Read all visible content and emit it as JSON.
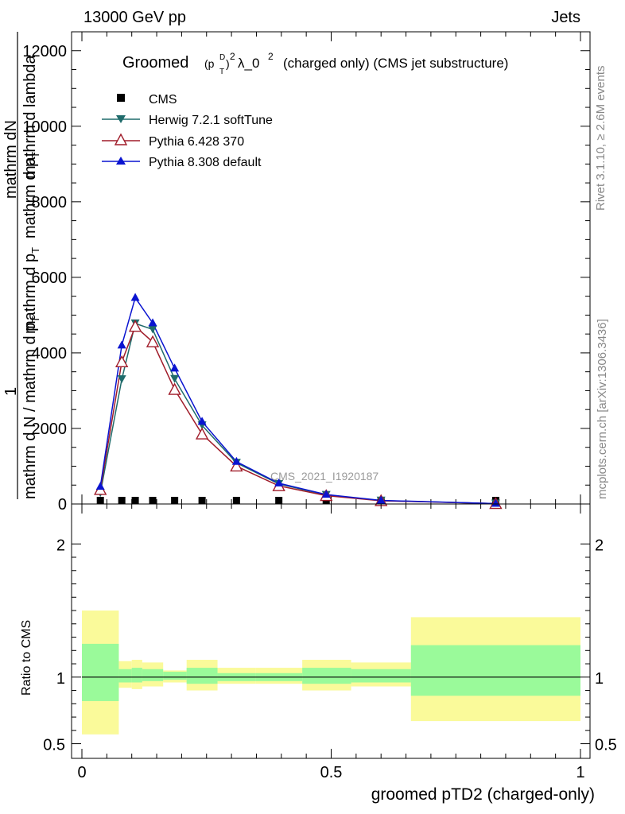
{
  "header": {
    "energy": "13000 GeV pp",
    "category": "Jets",
    "rivet_label": "Rivet 3.1.10, ≥ 2.6M events",
    "mcplots_label": "mcplots.cern.ch [arXiv:1306.3436]"
  },
  "chart_data": [
    {
      "type": "line",
      "title_prefix": "Groomed",
      "title_math_base": "(p",
      "title_math_sup": "D",
      "title_math_sub": "T",
      "title_math_close": ")",
      "title_math_exp": "2",
      "title_rest": "λ_0",
      "title_rest_exp": "2",
      "title_suffix": "(charged only) (CMS jet substructure)",
      "ylabel_top": "mathrm d",
      "ylabel_top_n": "N",
      "ylabel_top_tail": "mathrm d lambda",
      "ylabel_mid": "mathrm d p",
      "ylabel_mid_sub": "T",
      "ylabel_mid_tail": "mathrm d p",
      "ylabel_mid_tail_sub": "T",
      "ylabel_num": "1",
      "ylabel_bottom": "mathrm d N / mathrm d p",
      "ylabel_bottom_sub": "T",
      "ylabel_bottom_tail": "mathrm d N",
      "watermark": "CMS_2021_I1920187",
      "ylim": [
        0,
        12500
      ],
      "yticks": [
        0,
        2000,
        4000,
        6000,
        8000,
        10000,
        12000
      ],
      "ytick_labels": [
        "0",
        "2000",
        "4000",
        "6000",
        "8000",
        "10000",
        "12000"
      ],
      "xlim": [
        0,
        1
      ],
      "legend_position": "top-left",
      "series": [
        {
          "name": "CMS",
          "color": "#000000",
          "marker": "square",
          "x": [
            0.037,
            0.08,
            0.107,
            0.142,
            0.186,
            0.241,
            0.31,
            0.395,
            0.49,
            0.6,
            0.83
          ],
          "y": [
            0,
            0,
            0,
            0,
            0,
            0,
            0,
            0,
            0,
            0,
            0
          ]
        },
        {
          "name": "Herwig 7.2.1 softTune",
          "color": "#1f6b6b",
          "marker": "triangle-down",
          "x": [
            0.037,
            0.08,
            0.107,
            0.142,
            0.186,
            0.241,
            0.31,
            0.395,
            0.49,
            0.6,
            0.83
          ],
          "y": [
            290,
            3300,
            4780,
            4620,
            3310,
            2080,
            1090,
            530,
            240,
            90,
            10
          ]
        },
        {
          "name": "Pythia 6.428 370",
          "color": "#a01c2a",
          "marker": "triangle-open",
          "x": [
            0.037,
            0.08,
            0.107,
            0.142,
            0.186,
            0.241,
            0.31,
            0.395,
            0.49,
            0.6,
            0.83
          ],
          "y": [
            380,
            3760,
            4700,
            4290,
            3030,
            1850,
            1000,
            480,
            220,
            85,
            10
          ]
        },
        {
          "name": "Pythia 8.308 default",
          "color": "#0a14d0",
          "marker": "triangle-up",
          "x": [
            0.037,
            0.08,
            0.107,
            0.142,
            0.186,
            0.241,
            0.31,
            0.395,
            0.49,
            0.6,
            0.83
          ],
          "y": [
            460,
            4200,
            5460,
            4790,
            3590,
            2180,
            1120,
            550,
            250,
            95,
            10
          ]
        }
      ]
    },
    {
      "type": "area",
      "ylabel": "Ratio to CMS",
      "xlabel": "groomed pTD2 (charged-only)",
      "ylim": [
        0.39,
        2.3
      ],
      "yticks": [
        0.5,
        1,
        2
      ],
      "ytick_labels": [
        "0.5",
        "1",
        "2"
      ],
      "xlim": [
        0,
        1
      ],
      "xticks": [
        0,
        0.5,
        1
      ],
      "xtick_labels": [
        "0",
        "0.5",
        "1"
      ],
      "bins": [
        0,
        0.074,
        0.1,
        0.121,
        0.163,
        0.21,
        0.272,
        0.348,
        0.442,
        0.54,
        0.66,
        1.0
      ],
      "green_low": [
        0.82,
        0.96,
        0.96,
        0.97,
        0.98,
        0.95,
        0.97,
        0.97,
        0.95,
        0.96,
        0.86
      ],
      "green_high": [
        1.25,
        1.06,
        1.07,
        1.06,
        1.04,
        1.07,
        1.03,
        1.03,
        1.07,
        1.06,
        1.24
      ],
      "yellow_low": [
        0.57,
        0.92,
        0.91,
        0.93,
        0.96,
        0.9,
        0.95,
        0.95,
        0.9,
        0.93,
        0.67
      ],
      "yellow_high": [
        1.5,
        1.12,
        1.13,
        1.11,
        1.05,
        1.13,
        1.07,
        1.07,
        1.13,
        1.11,
        1.45
      ],
      "band_colors": {
        "green": "#9afa9a",
        "yellow": "#fafa9a"
      },
      "reference_line": 1
    }
  ]
}
